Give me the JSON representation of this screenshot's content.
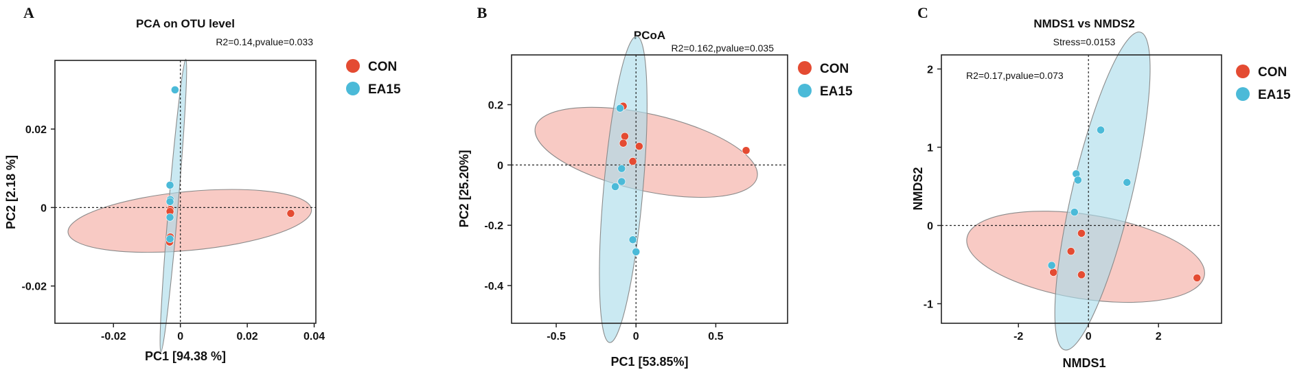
{
  "chart_data": [
    {
      "type": "scatter",
      "panel_letter": "A",
      "title": "PCA on OTU level",
      "subtitle": "R2=0.14,pvalue=0.033",
      "xlabel": "PC1 [94.38 %]",
      "ylabel": "PC2 [2.18 %]",
      "xlim": [
        -0.0375,
        0.0405
      ],
      "ylim": [
        -0.0295,
        0.0375
      ],
      "xticks": [
        -0.02,
        0,
        0.02,
        0.04
      ],
      "xtick_labels": [
        "-0.02",
        "0",
        "0.02",
        "0.04"
      ],
      "yticks": [
        -0.02,
        0,
        0.02
      ],
      "ytick_labels": [
        "-0.02",
        "0",
        "0.02"
      ],
      "legend": [
        "CON",
        "EA15"
      ],
      "colors": {
        "CON": "#e44b32",
        "EA15": "#4bbad8",
        "CON_fill": "#f4aaa0",
        "EA15_fill": "#a9dbea"
      },
      "ellipses": [
        {
          "group": "CON",
          "cx": 0.0028,
          "cy": -0.0034,
          "rx": 0.0365,
          "ry": 0.0075,
          "angle_deg": 4.6
        },
        {
          "group": "EA15",
          "cx": -0.0021,
          "cy": 0.0005,
          "rx": 0.0375,
          "ry": 0.0014,
          "angle_deg": 84.3
        }
      ],
      "series": [
        {
          "name": "CON",
          "x": [
            0.033,
            -0.003,
            -0.0031,
            -0.003,
            -0.0031,
            -0.0032
          ],
          "y": [
            -0.0015,
            -0.0005,
            -0.001,
            -0.0075,
            -0.0082,
            -0.0088
          ]
        },
        {
          "name": "EA15",
          "x": [
            -0.0016,
            -0.0031,
            -0.003,
            -0.0031,
            -0.0031,
            -0.0031
          ],
          "y": [
            0.03,
            0.0057,
            0.002,
            0.0015,
            -0.0025,
            -0.008
          ]
        }
      ],
      "subtitle_pos": "above-top-right",
      "legend_pos": "right"
    },
    {
      "type": "scatter",
      "panel_letter": "B",
      "title": "PCoA",
      "subtitle": "R2=0.162,pvalue=0.035",
      "xlabel": "PC1 [53.85%]",
      "ylabel": "PC2 [25.20%]",
      "xlim": [
        -0.78,
        0.95
      ],
      "ylim": [
        -0.525,
        0.365
      ],
      "xticks": [
        -0.5,
        0,
        0.5
      ],
      "xtick_labels": [
        "-0.5",
        "0",
        "0.5"
      ],
      "yticks": [
        -0.4,
        -0.2,
        0,
        0.2
      ],
      "ytick_labels": [
        "-0.4",
        "-0.2",
        "0",
        "0.2"
      ],
      "legend": [
        "CON",
        "EA15"
      ],
      "colors": {
        "CON": "#e44b32",
        "EA15": "#4bbad8",
        "CON_fill": "#f4aaa0",
        "EA15_fill": "#a9dbea"
      },
      "ellipses": [
        {
          "group": "CON",
          "cx": 0.064,
          "cy": 0.042,
          "rx": 0.7,
          "ry": 0.128,
          "angle_deg": -6.8
        },
        {
          "group": "EA15",
          "cx": -0.08,
          "cy": -0.081,
          "rx": 0.515,
          "ry": 0.119,
          "angle_deg": 80.5
        }
      ],
      "series": [
        {
          "name": "CON",
          "x": [
            -0.08,
            -0.07,
            -0.08,
            0.02,
            -0.02,
            0.69
          ],
          "y": [
            0.195,
            0.095,
            0.072,
            0.062,
            0.012,
            0.048
          ]
        },
        {
          "name": "EA15",
          "x": [
            -0.1,
            -0.09,
            -0.09,
            -0.13,
            -0.02,
            0.0
          ],
          "y": [
            0.188,
            -0.012,
            -0.055,
            -0.072,
            -0.248,
            -0.288
          ]
        }
      ],
      "subtitle_pos": "inside-top-right",
      "legend_pos": "right"
    },
    {
      "type": "scatter",
      "panel_letter": "C",
      "title": "NMDS1 vs NMDS2",
      "subtitle": "Stress=0.0153",
      "annotation": "R2=0.17,pvalue=0.073",
      "xlabel": "NMDS1",
      "ylabel": "NMDS2",
      "xlim": [
        -4.2,
        3.8
      ],
      "ylim": [
        -1.25,
        2.18
      ],
      "xticks": [
        -2,
        0,
        2
      ],
      "xtick_labels": [
        "-2",
        "0",
        "2"
      ],
      "yticks": [
        -1,
        0,
        1,
        2
      ],
      "ytick_labels": [
        "-1",
        "0",
        "1",
        "2"
      ],
      "legend": [
        "CON",
        "EA15"
      ],
      "colors": {
        "CON": "#e44b32",
        "EA15": "#4bbad8",
        "CON_fill": "#f4aaa0",
        "EA15_fill": "#a9dbea"
      },
      "ellipses": [
        {
          "group": "CON",
          "cx": -0.08,
          "cy": -0.4,
          "rx": 3.4,
          "ry": 0.54,
          "angle_deg": -4
        },
        {
          "group": "EA15",
          "cx": 0.4,
          "cy": 0.44,
          "rx": 2.3,
          "ry": 0.62,
          "angle_deg": 62
        }
      ],
      "series": [
        {
          "name": "CON",
          "x": [
            -0.2,
            -0.5,
            -1.0,
            -0.2,
            3.1
          ],
          "y": [
            -0.1,
            -0.33,
            -0.6,
            -0.63,
            -0.67
          ]
        },
        {
          "name": "EA15",
          "x": [
            0.35,
            -0.35,
            -0.3,
            1.1,
            -0.4,
            -1.05
          ],
          "y": [
            1.22,
            0.66,
            0.58,
            0.55,
            0.17,
            -0.51
          ]
        }
      ],
      "subtitle_pos": "above-center",
      "annotation_pos": "inside-top-left",
      "legend_pos": "right"
    }
  ]
}
